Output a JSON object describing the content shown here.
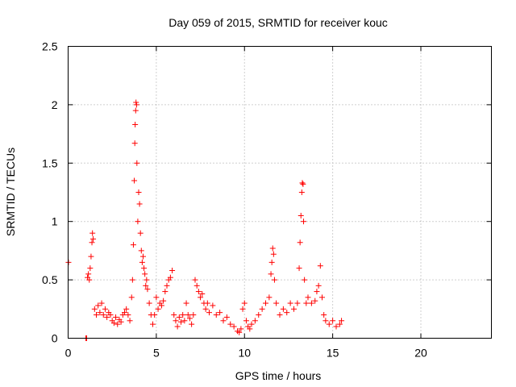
{
  "chart_data": {
    "type": "scatter",
    "title": "Day 059 of 2015, SRMTID for receiver kouc",
    "xlabel": "GPS time / hours",
    "ylabel": "SRMTID / TECUs",
    "xlim": [
      0,
      24
    ],
    "ylim": [
      0,
      2.5
    ],
    "xticks": [
      0,
      5,
      10,
      15,
      20
    ],
    "xtick_labels": [
      "0",
      "5",
      "10",
      "15",
      "20"
    ],
    "yticks": [
      0,
      0.5,
      1,
      1.5,
      2,
      2.5
    ],
    "ytick_labels": [
      "0",
      "0.5",
      "1",
      "1.5",
      "2",
      "2.5"
    ],
    "grid": true,
    "marker": "+",
    "color": "#ff0000",
    "series": [
      {
        "name": "SRMTID",
        "points": [
          [
            0.02,
            0.65
          ],
          [
            1.0,
            0.0
          ],
          [
            1.05,
            0.0
          ],
          [
            1.1,
            0.52
          ],
          [
            1.15,
            0.55
          ],
          [
            1.2,
            0.5
          ],
          [
            1.25,
            0.6
          ],
          [
            1.3,
            0.7
          ],
          [
            1.35,
            0.82
          ],
          [
            1.38,
            0.9
          ],
          [
            1.42,
            0.85
          ],
          [
            1.5,
            0.25
          ],
          [
            1.6,
            0.2
          ],
          [
            1.7,
            0.28
          ],
          [
            1.8,
            0.22
          ],
          [
            1.9,
            0.3
          ],
          [
            2.0,
            0.2
          ],
          [
            2.1,
            0.25
          ],
          [
            2.2,
            0.18
          ],
          [
            2.3,
            0.22
          ],
          [
            2.4,
            0.2
          ],
          [
            2.5,
            0.15
          ],
          [
            2.6,
            0.13
          ],
          [
            2.7,
            0.18
          ],
          [
            2.8,
            0.12
          ],
          [
            2.9,
            0.16
          ],
          [
            3.0,
            0.14
          ],
          [
            3.1,
            0.2
          ],
          [
            3.2,
            0.22
          ],
          [
            3.3,
            0.25
          ],
          [
            3.4,
            0.2
          ],
          [
            3.5,
            0.15
          ],
          [
            3.6,
            0.35
          ],
          [
            3.65,
            0.5
          ],
          [
            3.7,
            0.8
          ],
          [
            3.75,
            1.35
          ],
          [
            3.78,
            1.67
          ],
          [
            3.8,
            1.83
          ],
          [
            3.83,
            1.95
          ],
          [
            3.85,
            2.02
          ],
          [
            3.88,
            2.0
          ],
          [
            3.9,
            1.5
          ],
          [
            3.95,
            1.0
          ],
          [
            4.0,
            1.25
          ],
          [
            4.05,
            1.15
          ],
          [
            4.1,
            0.9
          ],
          [
            4.15,
            0.75
          ],
          [
            4.2,
            0.65
          ],
          [
            4.25,
            0.7
          ],
          [
            4.3,
            0.6
          ],
          [
            4.35,
            0.55
          ],
          [
            4.4,
            0.45
          ],
          [
            4.45,
            0.5
          ],
          [
            4.5,
            0.42
          ],
          [
            4.6,
            0.3
          ],
          [
            4.7,
            0.2
          ],
          [
            4.8,
            0.12
          ],
          [
            4.9,
            0.2
          ],
          [
            5.0,
            0.35
          ],
          [
            5.1,
            0.25
          ],
          [
            5.2,
            0.3
          ],
          [
            5.3,
            0.28
          ],
          [
            5.4,
            0.32
          ],
          [
            5.5,
            0.4
          ],
          [
            5.6,
            0.45
          ],
          [
            5.7,
            0.5
          ],
          [
            5.8,
            0.52
          ],
          [
            5.9,
            0.58
          ],
          [
            6.0,
            0.2
          ],
          [
            6.1,
            0.15
          ],
          [
            6.2,
            0.1
          ],
          [
            6.3,
            0.18
          ],
          [
            6.4,
            0.14
          ],
          [
            6.5,
            0.2
          ],
          [
            6.6,
            0.15
          ],
          [
            6.7,
            0.3
          ],
          [
            6.8,
            0.2
          ],
          [
            6.9,
            0.17
          ],
          [
            7.0,
            0.12
          ],
          [
            7.1,
            0.2
          ],
          [
            7.2,
            0.5
          ],
          [
            7.3,
            0.45
          ],
          [
            7.4,
            0.4
          ],
          [
            7.5,
            0.35
          ],
          [
            7.6,
            0.38
          ],
          [
            7.7,
            0.3
          ],
          [
            7.8,
            0.25
          ],
          [
            7.9,
            0.3
          ],
          [
            8.0,
            0.22
          ],
          [
            8.2,
            0.28
          ],
          [
            8.4,
            0.2
          ],
          [
            8.6,
            0.22
          ],
          [
            8.8,
            0.15
          ],
          [
            9.0,
            0.18
          ],
          [
            9.2,
            0.12
          ],
          [
            9.4,
            0.1
          ],
          [
            9.6,
            0.06
          ],
          [
            9.7,
            0.05
          ],
          [
            9.8,
            0.08
          ],
          [
            9.9,
            0.25
          ],
          [
            10.0,
            0.3
          ],
          [
            10.1,
            0.15
          ],
          [
            10.2,
            0.1
          ],
          [
            10.3,
            0.08
          ],
          [
            10.4,
            0.12
          ],
          [
            10.6,
            0.15
          ],
          [
            10.8,
            0.2
          ],
          [
            11.0,
            0.25
          ],
          [
            11.2,
            0.3
          ],
          [
            11.4,
            0.35
          ],
          [
            11.5,
            0.55
          ],
          [
            11.55,
            0.65
          ],
          [
            11.6,
            0.77
          ],
          [
            11.65,
            0.72
          ],
          [
            11.7,
            0.5
          ],
          [
            11.8,
            0.3
          ],
          [
            12.0,
            0.2
          ],
          [
            12.2,
            0.25
          ],
          [
            12.4,
            0.22
          ],
          [
            12.6,
            0.3
          ],
          [
            12.8,
            0.25
          ],
          [
            13.0,
            0.3
          ],
          [
            13.1,
            0.6
          ],
          [
            13.15,
            0.82
          ],
          [
            13.2,
            1.05
          ],
          [
            13.25,
            1.25
          ],
          [
            13.28,
            1.33
          ],
          [
            13.32,
            1.32
          ],
          [
            13.35,
            1.0
          ],
          [
            13.4,
            0.5
          ],
          [
            13.5,
            0.3
          ],
          [
            13.6,
            0.35
          ],
          [
            13.8,
            0.3
          ],
          [
            14.0,
            0.32
          ],
          [
            14.1,
            0.4
          ],
          [
            14.2,
            0.45
          ],
          [
            14.3,
            0.62
          ],
          [
            14.4,
            0.35
          ],
          [
            14.5,
            0.2
          ],
          [
            14.6,
            0.15
          ],
          [
            14.8,
            0.12
          ],
          [
            15.0,
            0.15
          ],
          [
            15.2,
            0.1
          ],
          [
            15.4,
            0.12
          ],
          [
            15.5,
            0.15
          ]
        ]
      }
    ]
  }
}
